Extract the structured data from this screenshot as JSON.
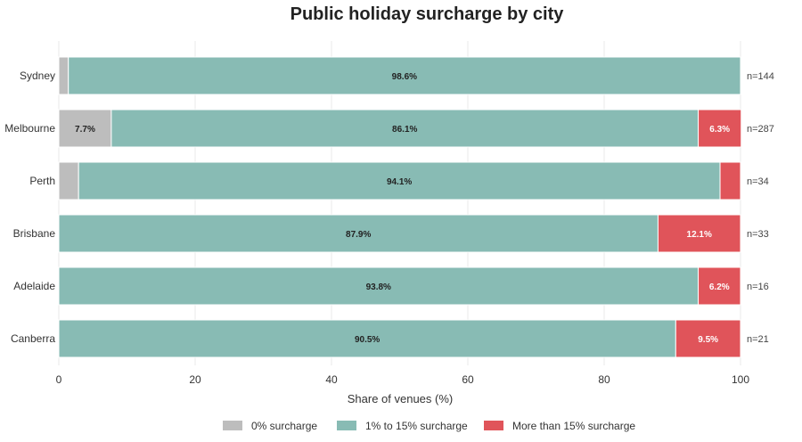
{
  "chart_data": {
    "type": "bar",
    "orientation": "horizontal",
    "stacked": true,
    "title": "Public holiday surcharge by city",
    "xlabel": "Share of venues (%)",
    "ylabel": "",
    "xlim": [
      0,
      100
    ],
    "xticks": [
      0,
      20,
      40,
      60,
      80,
      100
    ],
    "grid": true,
    "legend_position": "bottom",
    "categories": [
      "Sydney",
      "Melbourne",
      "Perth",
      "Brisbane",
      "Adelaide",
      "Canberra"
    ],
    "counts": [
      "n=144",
      "n=287",
      "n=34",
      "n=33",
      "n=16",
      "n=21"
    ],
    "series": [
      {
        "name": "0% surcharge",
        "color": "#bdbdbd",
        "label_color": "#222222",
        "values": [
          1.4,
          7.7,
          2.9,
          0,
          0,
          0
        ],
        "labels": [
          "",
          "7.7%",
          "",
          "",
          "",
          ""
        ]
      },
      {
        "name": "1% to 15% surcharge",
        "color": "#88bbb4",
        "label_color": "#222222",
        "values": [
          98.6,
          86.1,
          94.1,
          87.9,
          93.8,
          90.5
        ],
        "labels": [
          "98.6%",
          "86.1%",
          "94.1%",
          "87.9%",
          "93.8%",
          "90.5%"
        ]
      },
      {
        "name": "More than 15% surcharge",
        "color": "#e0545a",
        "label_color": "#ffffff",
        "values": [
          0,
          6.3,
          3.0,
          12.1,
          6.2,
          9.5
        ],
        "labels": [
          "",
          "6.3%",
          "",
          "12.1%",
          "6.2%",
          "9.5%"
        ]
      }
    ]
  }
}
